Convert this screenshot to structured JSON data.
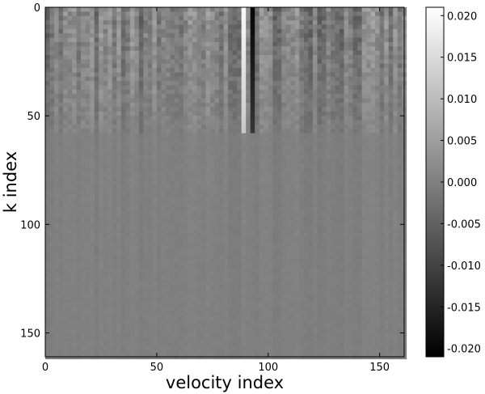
{
  "chart_data": {
    "type": "heatmap",
    "colormap": "gray",
    "xlabel": "velocity index",
    "ylabel": "k index",
    "x_range": [
      0,
      161
    ],
    "y_range": [
      0,
      161
    ],
    "y_inverted": true,
    "x_ticks": [
      "0",
      "50",
      "100",
      "150"
    ],
    "y_ticks": [
      "0",
      "50",
      "100",
      "150"
    ],
    "colorbar": {
      "range": [
        -0.021,
        0.021
      ],
      "ticks": [
        "0.020",
        "0.015",
        "0.010",
        "0.005",
        "0.000",
        "-0.005",
        "-0.010",
        "-0.015",
        "-0.020"
      ]
    },
    "features": {
      "high_variance_k_range": [
        0,
        58
      ],
      "strong_column_pair_velocity_index": [
        89,
        93
      ],
      "strong_column_pair_values": [
        0.02,
        -0.02
      ]
    }
  }
}
